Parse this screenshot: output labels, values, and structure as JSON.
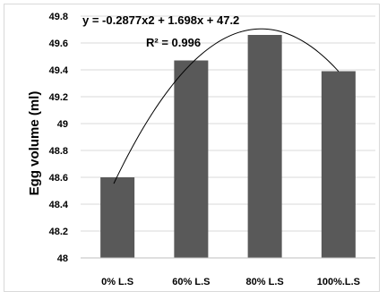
{
  "chart_data": {
    "type": "bar",
    "categories": [
      "0% L.S",
      "60% L.S",
      "80% L.S",
      "100%.L.S"
    ],
    "series": [
      {
        "values": [
          48.6,
          49.47,
          49.66,
          49.39
        ]
      }
    ],
    "xlabel": "",
    "ylabel": "Egg volume (ml)",
    "ylim": [
      48,
      49.8
    ],
    "yticks": [
      48,
      48.2,
      48.4,
      48.6,
      48.8,
      49,
      49.2,
      49.4,
      49.6,
      49.8
    ],
    "ytick_labels": [
      "48",
      "48.2",
      "48.4",
      "48.6",
      "48.8",
      "49",
      "49.2",
      "49.4",
      "49.6",
      "49.8"
    ],
    "grid": true,
    "bar_color": "#595959",
    "gridline_color": "#d9d9d9",
    "trendline": {
      "type": "polynomial",
      "order": 2,
      "coefficients": [
        -0.2877,
        1.698,
        47.2
      ],
      "color": "#000000"
    },
    "annotations": {
      "equation": "y = -0.2877x2 + 1.698x + 47.2",
      "r_squared": "R² = 0.996"
    }
  }
}
